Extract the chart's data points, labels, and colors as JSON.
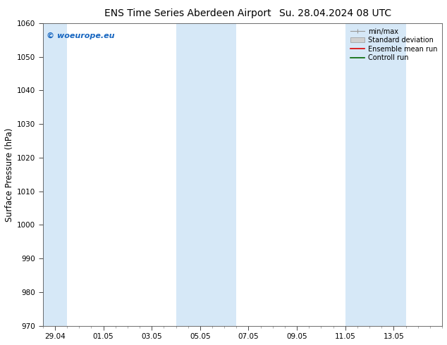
{
  "title_left": "ENS Time Series Aberdeen Airport",
  "title_right": "Su. 28.04.2024 08 UTC",
  "ylabel": "Surface Pressure (hPa)",
  "ylim": [
    970,
    1060
  ],
  "yticks": [
    970,
    980,
    990,
    1000,
    1010,
    1020,
    1030,
    1040,
    1050,
    1060
  ],
  "xtick_labels": [
    "29.04",
    "01.05",
    "03.05",
    "05.05",
    "07.05",
    "09.05",
    "11.05",
    "13.05"
  ],
  "shaded_color": "#d6e8f7",
  "bg_color": "#ffffff",
  "watermark_text": "© woeurope.eu",
  "watermark_color": "#1565c0",
  "legend_labels": [
    "min/max",
    "Standard deviation",
    "Ensemble mean run",
    "Controll run"
  ],
  "title_fontsize": 10,
  "tick_fontsize": 7.5,
  "ylabel_fontsize": 8.5,
  "watermark_fontsize": 8,
  "legend_fontsize": 7
}
